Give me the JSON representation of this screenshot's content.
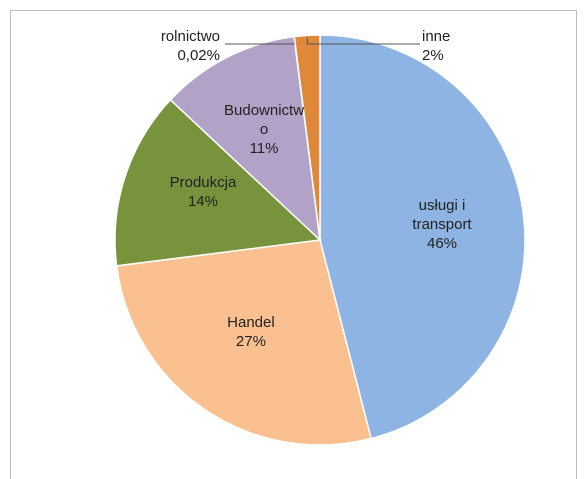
{
  "chart_data": {
    "type": "pie",
    "categories": [
      "usługi i transport",
      "Handel",
      "Produkcja",
      "Budownictwo",
      "rolnictwo",
      "inne"
    ],
    "values": [
      46,
      27,
      14,
      11,
      0.02,
      2
    ],
    "value_labels": [
      "46%",
      "27%",
      "14%",
      "11%",
      "0,02%",
      "2%"
    ],
    "colors": [
      "#8db4e2",
      "#fac090",
      "#77933c",
      "#b3a2c7",
      "#c0504d",
      "#e0883a"
    ]
  }
}
